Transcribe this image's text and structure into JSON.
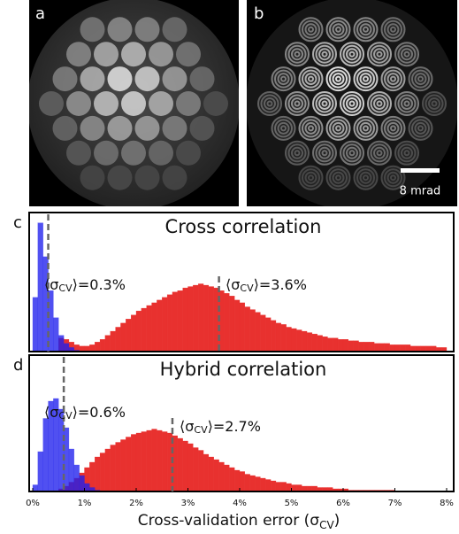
{
  "image_labels": [
    "a",
    "b"
  ],
  "scale_bar": "8 mrad",
  "chart_data": [
    {
      "type": "histogram",
      "label": "c",
      "title": "Cross correlation",
      "bins": [
        0,
        0.1,
        0.2,
        0.3,
        0.4,
        0.5,
        0.6,
        0.7,
        0.8,
        0.9,
        1,
        1.1,
        1.2,
        1.3,
        1.4,
        1.5,
        1.6,
        1.7,
        1.8,
        1.9,
        2,
        2.1,
        2.2,
        2.3,
        2.4,
        2.5,
        2.6,
        2.7,
        2.8,
        2.9,
        3,
        3.1,
        3.2,
        3.3,
        3.4,
        3.5,
        3.6,
        3.7,
        3.8,
        3.9,
        4,
        4.1,
        4.2,
        4.3,
        4.4,
        4.5,
        4.6,
        4.7,
        4.8,
        4.9,
        5,
        5.1,
        5.2,
        5.3,
        5.4,
        5.5,
        5.6,
        5.7,
        5.8,
        5.9,
        6,
        6.1,
        6.2,
        6.3,
        6.4,
        6.5,
        6.6,
        6.7,
        6.8,
        6.9,
        7,
        7.1,
        7.2,
        7.3,
        7.4,
        7.5,
        7.6,
        7.7,
        7.8,
        7.9,
        8
      ],
      "series": [
        {
          "color": "#e8312f",
          "values": [
            0,
            0,
            0,
            0,
            0,
            10,
            9,
            7,
            5,
            4,
            4,
            5,
            7,
            9,
            12,
            15,
            18,
            21,
            24,
            27,
            30,
            32,
            34,
            36,
            38,
            40,
            42,
            44,
            45,
            47,
            48,
            49,
            50,
            49,
            48,
            47,
            45,
            43,
            41,
            38,
            36,
            33,
            31,
            29,
            27,
            25,
            23,
            21,
            20,
            18,
            17,
            16,
            15,
            14,
            13,
            12,
            11,
            10,
            10,
            9,
            9,
            8,
            8,
            7,
            7,
            7,
            6,
            6,
            6,
            5,
            5,
            5,
            5,
            4,
            4,
            4,
            4,
            4,
            3,
            3
          ]
        },
        {
          "color": "#1f1fee",
          "values": [
            40,
            95,
            70,
            45,
            25,
            12,
            6,
            3,
            1,
            0,
            0,
            0,
            0,
            0,
            0,
            0,
            0,
            0,
            0,
            0,
            0,
            0,
            0,
            0,
            0,
            0,
            0,
            0,
            0,
            0,
            0,
            0,
            0,
            0,
            0,
            0,
            0,
            0,
            0,
            0,
            0,
            0,
            0,
            0,
            0,
            0,
            0,
            0,
            0,
            0,
            0,
            0,
            0,
            0,
            0,
            0,
            0,
            0,
            0,
            0,
            0,
            0,
            0,
            0,
            0,
            0,
            0,
            0,
            0,
            0,
            0,
            0,
            0,
            0,
            0,
            0,
            0,
            0,
            0,
            0
          ]
        }
      ],
      "annotations": [
        {
          "x": 0.3,
          "prefix": "⟨σ",
          "sub": "CV",
          "suffix": "⟩=0.3%"
        },
        {
          "x": 3.6,
          "prefix": "⟨σ",
          "sub": "CV",
          "suffix": "⟩=3.6%"
        }
      ],
      "xlim": [
        0,
        8
      ],
      "ylim": [
        0,
        100
      ]
    },
    {
      "type": "histogram",
      "label": "d",
      "title": "Hybrid correlation",
      "bins": [
        0,
        0.1,
        0.2,
        0.3,
        0.4,
        0.5,
        0.6,
        0.7,
        0.8,
        0.9,
        1,
        1.1,
        1.2,
        1.3,
        1.4,
        1.5,
        1.6,
        1.7,
        1.8,
        1.9,
        2,
        2.1,
        2.2,
        2.3,
        2.4,
        2.5,
        2.6,
        2.7,
        2.8,
        2.9,
        3,
        3.1,
        3.2,
        3.3,
        3.4,
        3.5,
        3.6,
        3.7,
        3.8,
        3.9,
        4,
        4.1,
        4.2,
        4.3,
        4.4,
        4.5,
        4.6,
        4.7,
        4.8,
        4.9,
        5,
        5.1,
        5.2,
        5.3,
        5.4,
        5.5,
        5.6,
        5.7,
        5.8,
        5.9,
        6,
        6.1,
        6.2,
        6.3,
        6.4,
        6.5,
        6.6,
        6.7,
        6.8,
        6.9,
        7,
        7.1,
        7.2,
        7.3,
        7.4,
        7.5,
        7.6,
        7.7,
        7.8,
        7.9,
        8
      ],
      "series": [
        {
          "color": "#e8312f",
          "values": [
            0,
            0,
            0,
            0,
            0,
            2,
            4,
            7,
            10,
            14,
            18,
            22,
            26,
            29,
            32,
            35,
            37,
            39,
            41,
            43,
            44,
            45,
            46,
            47,
            46,
            45,
            44,
            42,
            40,
            38,
            36,
            33,
            31,
            28,
            26,
            24,
            22,
            20,
            18,
            16,
            15,
            13,
            12,
            11,
            10,
            9,
            8,
            7,
            7,
            6,
            5,
            5,
            4,
            4,
            4,
            3,
            3,
            3,
            2,
            2,
            2,
            1,
            1,
            1,
            1,
            1,
            1,
            1,
            1,
            1,
            0,
            0,
            0,
            0,
            0,
            0,
            0,
            0,
            0,
            0
          ]
        },
        {
          "color": "#1f1fee",
          "values": [
            5,
            30,
            55,
            68,
            70,
            62,
            48,
            32,
            20,
            12,
            6,
            3,
            1,
            0,
            0,
            0,
            0,
            0,
            0,
            0,
            0,
            0,
            0,
            0,
            0,
            0,
            0,
            0,
            0,
            0,
            0,
            0,
            0,
            0,
            0,
            0,
            0,
            0,
            0,
            0,
            0,
            0,
            0,
            0,
            0,
            0,
            0,
            0,
            0,
            0,
            0,
            0,
            0,
            0,
            0,
            0,
            0,
            0,
            0,
            0,
            0,
            0,
            0,
            0,
            0,
            0,
            0,
            0,
            0,
            0,
            0,
            0,
            0,
            0,
            0,
            0,
            0,
            0,
            0,
            0
          ]
        }
      ],
      "annotations": [
        {
          "x": 0.6,
          "prefix": "⟨σ",
          "sub": "CV",
          "suffix": "⟩=0.6%"
        },
        {
          "x": 2.7,
          "prefix": "⟨σ",
          "sub": "CV",
          "suffix": "⟩=2.7%"
        }
      ],
      "xlim": [
        0,
        8
      ],
      "ylim": [
        0,
        100
      ],
      "xticks": [
        {
          "value": 0,
          "label": "0%"
        },
        {
          "value": 1,
          "label": "1%"
        },
        {
          "value": 2,
          "label": "2%"
        },
        {
          "value": 3,
          "label": "3%"
        },
        {
          "value": 4,
          "label": "4%"
        },
        {
          "value": 5,
          "label": "5%"
        },
        {
          "value": 6,
          "label": "6%"
        },
        {
          "value": 7,
          "label": "7%"
        },
        {
          "value": 8,
          "label": "8%"
        }
      ],
      "xlabel": {
        "prefix": "Cross-validation error (σ",
        "sub": "CV",
        "suffix": ")"
      }
    }
  ]
}
